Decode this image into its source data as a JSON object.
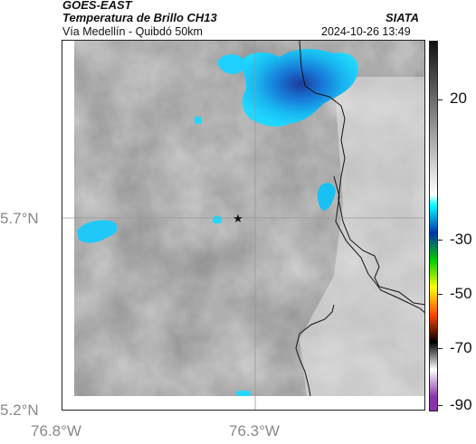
{
  "header": {
    "title": "GOES-EAST",
    "subtitle": "Temperatura de Brillo CH13",
    "route": "Vía Medellín - Quibdó 50km",
    "source": "SIATA",
    "timestamp": "2024-10-26 13:49"
  },
  "map": {
    "lat_labels": [
      "5.7°N",
      "5.2°N"
    ],
    "lon_labels": [
      "76.8°W",
      "76.3°W"
    ],
    "marker": "star-icon"
  },
  "colorbar": {
    "labels": [
      "20",
      "-30",
      "-50",
      "-70",
      "-90"
    ],
    "stops": [
      {
        "value": 40,
        "color": "#111111"
      },
      {
        "value": -16,
        "color": "#ffffff"
      },
      {
        "value": -20,
        "color": "#00ffff"
      },
      {
        "value": -30,
        "color": "#0033aa"
      },
      {
        "value": -40,
        "color": "#00cc00"
      },
      {
        "value": -50,
        "color": "#ffff00"
      },
      {
        "value": -60,
        "color": "#ff4400"
      },
      {
        "value": -70,
        "color": "#000000"
      },
      {
        "value": -80,
        "color": "#ffffff"
      },
      {
        "value": -90,
        "color": "#8833aa"
      }
    ]
  }
}
